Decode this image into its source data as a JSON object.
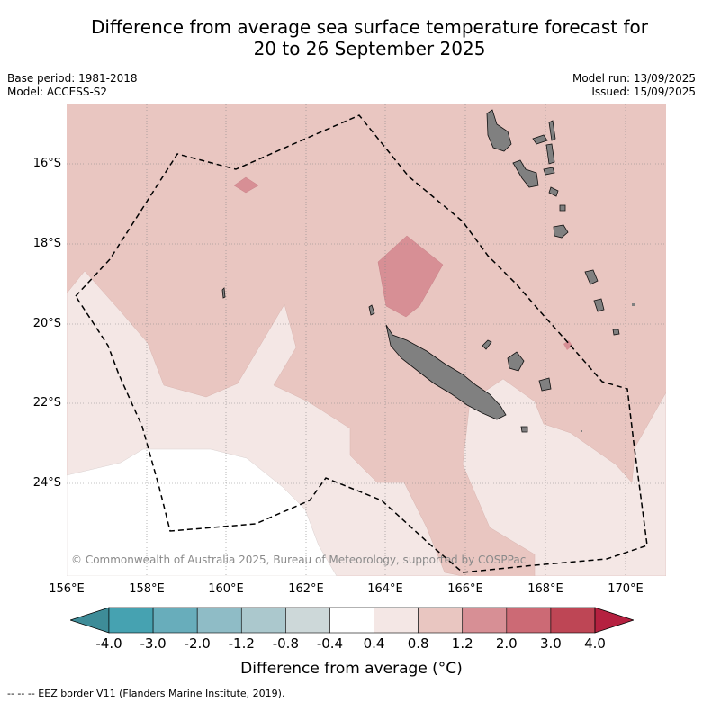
{
  "title_line1": "Difference from average sea surface temperature forecast for",
  "title_line2": "20 to 26 September 2025",
  "base_period": "Base period: 1981-2018",
  "model": "Model: ACCESS-S2",
  "model_run": "Model run: 13/09/2025",
  "issued": "Issued: 15/09/2025",
  "lat_labels": [
    "16°S",
    "18°S",
    "20°S",
    "22°S",
    "24°S"
  ],
  "lon_labels": [
    "156°E",
    "158°E",
    "160°E",
    "162°E",
    "164°E",
    "166°E",
    "168°E",
    "170°E"
  ],
  "credit": "© Commonwealth of Australia 2025, Bureau of Meteorology, supported by COSPPac",
  "colorbar": {
    "ticks": [
      "-4.0",
      "-3.0",
      "-2.0",
      "-1.2",
      "-0.8",
      "-0.4",
      "0.4",
      "0.8",
      "1.2",
      "2.0",
      "3.0",
      "4.0"
    ],
    "colors": [
      "#46a2b1",
      "#68adbb",
      "#8fbcc6",
      "#abc8cd",
      "#cdd8d9",
      "#ffffff",
      "#f4e7e5",
      "#e9c6c1",
      "#d78f95",
      "#cc6a75",
      "#be4655"
    ],
    "under_color": "#3e8c98",
    "over_color": "#b52140",
    "label": "Difference from average (°C)"
  },
  "footer": "--  --  -- EEZ border V11 (Flanders Marine Institute, 2019)."
}
